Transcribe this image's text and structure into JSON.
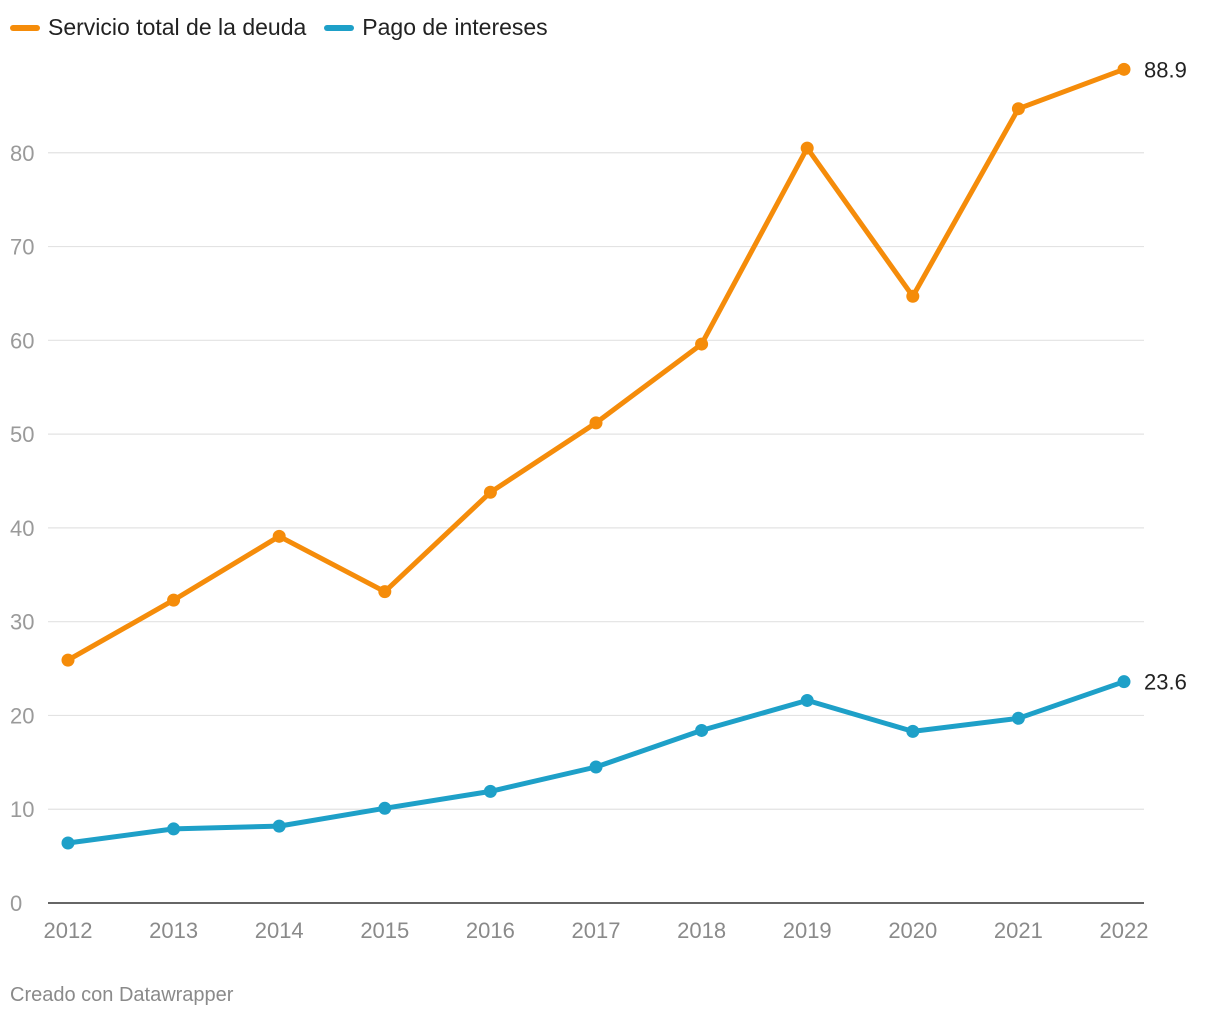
{
  "chart_data": {
    "type": "line",
    "x": [
      2012,
      2013,
      2014,
      2015,
      2016,
      2017,
      2018,
      2019,
      2020,
      2021,
      2022
    ],
    "x_tick_labels": [
      "2012",
      "2013",
      "2014",
      "2015",
      "2016",
      "2017",
      "2018",
      "2019",
      "2020",
      "2021",
      "2022"
    ],
    "y_ticks": [
      0,
      10,
      20,
      30,
      40,
      50,
      60,
      70,
      80
    ],
    "ylim": [
      0,
      90
    ],
    "grid": true,
    "legend_position": "top-left",
    "series": [
      {
        "name": "Servicio total de la deuda",
        "color": "#f58c0a",
        "values": [
          25.9,
          32.3,
          39.1,
          33.2,
          43.8,
          51.2,
          59.6,
          80.5,
          64.7,
          84.7,
          88.9
        ],
        "end_label": "88.9"
      },
      {
        "name": "Pago de intereses",
        "color": "#1ea0c8",
        "values": [
          6.4,
          7.9,
          8.2,
          10.1,
          11.9,
          14.5,
          18.4,
          21.6,
          18.3,
          19.7,
          23.6
        ],
        "end_label": "23.6"
      }
    ]
  },
  "footer": {
    "credit": "Creado con Datawrapper"
  }
}
